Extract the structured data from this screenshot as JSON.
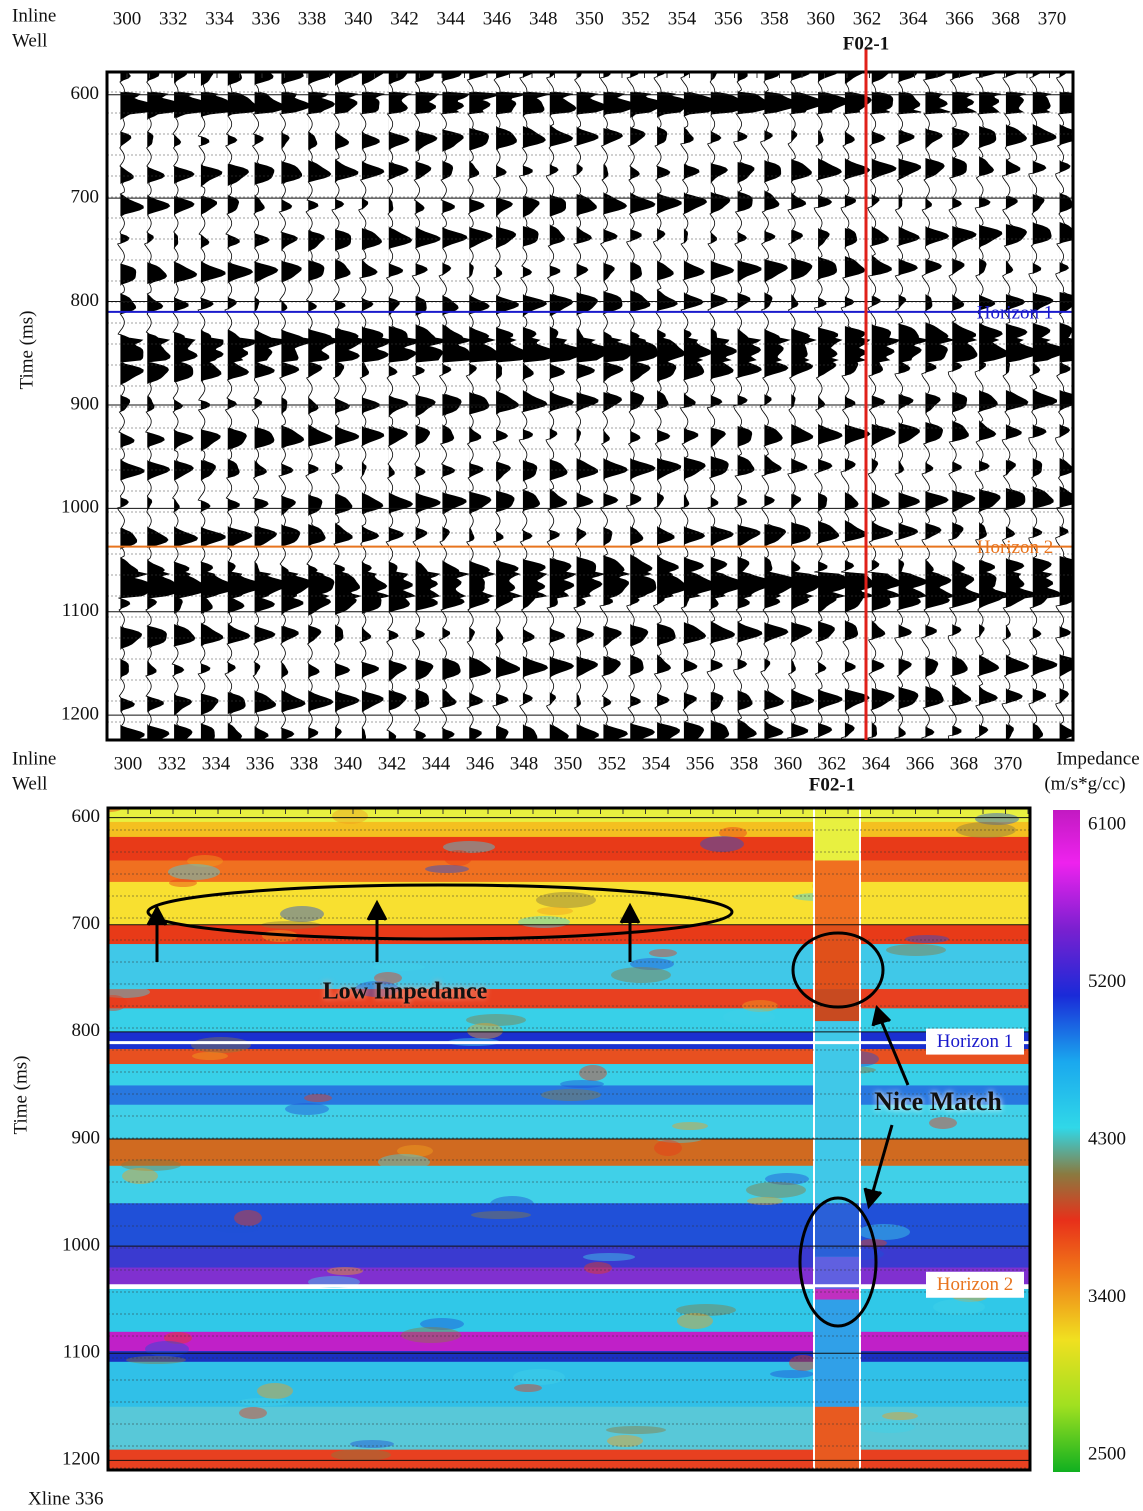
{
  "row_labels": [
    "Inline",
    "Well"
  ],
  "well_name": "F02-1",
  "y_label": "Time (ms)",
  "horizons": [
    {
      "name": "Horizon 1",
      "time": 810,
      "color": "#1a1acc"
    },
    {
      "name": "Horizon 2",
      "time": 1037,
      "color": "#e8741e"
    }
  ],
  "seismic_panel": {
    "inline_ticks": [
      300,
      332,
      334,
      336,
      338,
      340,
      342,
      344,
      346,
      348,
      350,
      352,
      354,
      356,
      358,
      360,
      362,
      364,
      366,
      368,
      370
    ],
    "ylim": [
      578,
      1224
    ],
    "yticks": [
      600,
      700,
      800,
      900,
      1000,
      1100,
      1200
    ]
  },
  "impedance_panel": {
    "inline_ticks": [
      300,
      332,
      334,
      336,
      338,
      340,
      342,
      344,
      346,
      348,
      350,
      352,
      354,
      356,
      358,
      360,
      362,
      364,
      366,
      368,
      370
    ],
    "ylim": [
      591,
      1209
    ],
    "yticks": [
      600,
      700,
      800,
      900,
      1000,
      1100,
      1200
    ],
    "colorbar": {
      "title": [
        "Impedance",
        "(m/s*g/cc)"
      ],
      "ticks": [
        6100,
        5200,
        4300,
        3400,
        2500
      ]
    },
    "annotations": [
      "Low Impedance",
      "Nice Match"
    ]
  },
  "footer": "Xline 336"
}
